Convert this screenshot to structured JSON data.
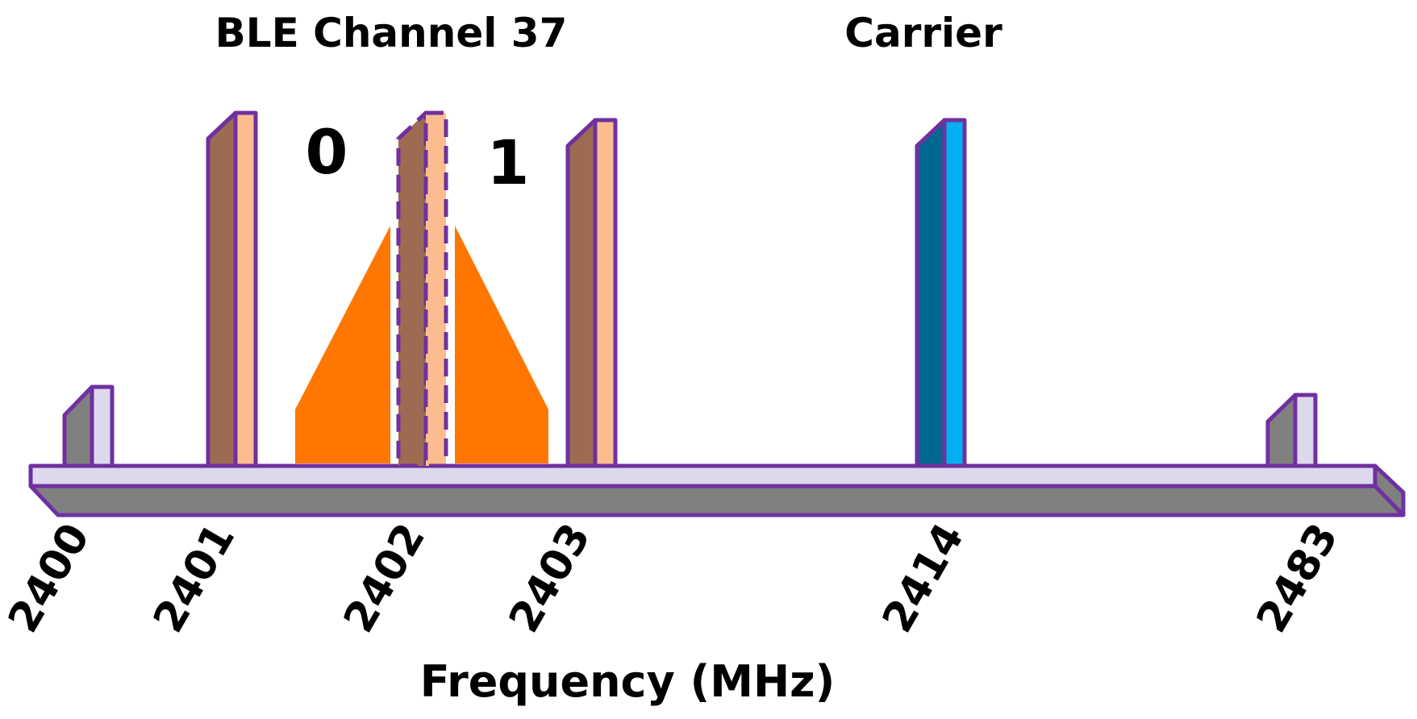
{
  "titles": {
    "ble_channel": "BLE Channel 37",
    "carrier": "Carrier"
  },
  "bits": {
    "zero": "0",
    "one": "1"
  },
  "axis": {
    "title": "Frequency (MHz)"
  },
  "ticks": [
    "2400",
    "2401",
    "2402",
    "2403",
    "2414",
    "2483"
  ],
  "colors": {
    "outline": "#7030a0",
    "axis_top": "#ddd9ec",
    "axis_side": "#808080",
    "band_edge_face": "#ddd9ec",
    "band_edge_side": "#808080",
    "ble_face": "#fbbd90",
    "ble_side": "#9c6b52",
    "carrier_face": "#00b0f0",
    "carrier_side": "#006890",
    "modulation": "#ff7700"
  }
}
